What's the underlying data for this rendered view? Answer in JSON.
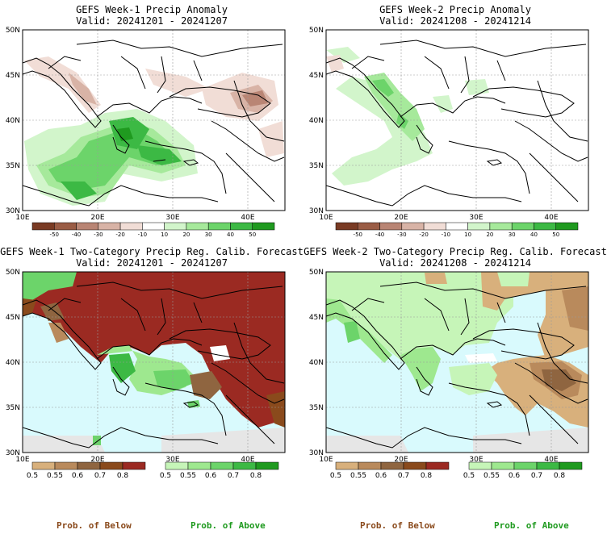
{
  "panels": [
    {
      "id": "w1-anom",
      "title": "GEFS Week-1 Precip Anomaly",
      "valid": "Valid: 20241201 - 20241207",
      "kind": "anomaly",
      "lat_labels": [
        "50N",
        "45N",
        "40N",
        "35N",
        "30N"
      ],
      "lon_labels": [
        "10E",
        "20E",
        "30E",
        "40E"
      ],
      "colorbar": {
        "labels": [
          "-50",
          "-40",
          "-30",
          "-20",
          "-10",
          "10",
          "20",
          "30",
          "40",
          "50"
        ],
        "colors": [
          "#7a3b24",
          "#9a5c45",
          "#b98574",
          "#d8b3a6",
          "#f1ddd6",
          "#ffffff",
          "#d2f5cb",
          "#a6e99b",
          "#6cd46a",
          "#3cb944",
          "#1f9a1f"
        ]
      }
    },
    {
      "id": "w2-anom",
      "title": "GEFS Week-2 Precip Anomaly",
      "valid": "Valid: 20241208 - 20241214",
      "kind": "anomaly",
      "lat_labels": [
        "50N",
        "45N",
        "40N",
        "35N",
        "30N"
      ],
      "lon_labels": [
        "10E",
        "20E",
        "30E",
        "40E"
      ],
      "colorbar": {
        "labels": [
          "-50",
          "-40",
          "-30",
          "-20",
          "-10",
          "10",
          "20",
          "30",
          "40",
          "50"
        ],
        "colors": [
          "#7a3b24",
          "#9a5c45",
          "#b98574",
          "#d8b3a6",
          "#f1ddd6",
          "#ffffff",
          "#d2f5cb",
          "#a6e99b",
          "#6cd46a",
          "#3cb944",
          "#1f9a1f"
        ]
      }
    },
    {
      "id": "w1-prob",
      "title": "GEFS Week-1 Two-Category Precip Reg. Calib. Forecast",
      "valid": "Valid: 20241201 - 20241207",
      "kind": "prob",
      "lat_labels": [
        "50N",
        "45N",
        "40N",
        "35N",
        "30N"
      ],
      "lon_labels": [
        "10E",
        "20E",
        "30E",
        "40E"
      ],
      "below_bar": {
        "labels": [
          "0.5",
          "0.55",
          "0.6",
          "0.7",
          "0.8"
        ],
        "colors": [
          "#d8b07c",
          "#b98a5c",
          "#8f6540",
          "#8a4a1c",
          "#9b2a22"
        ]
      },
      "above_bar": {
        "labels": [
          "0.5",
          "0.55",
          "0.6",
          "0.7",
          "0.8"
        ],
        "colors": [
          "#c6f5b8",
          "#9ee88f",
          "#6cd46a",
          "#3cb944",
          "#1f9a1f"
        ]
      }
    },
    {
      "id": "w2-prob",
      "title": "GEFS Week-2 Two-Category Precip Reg. Calib. Forecast",
      "valid": "Valid: 20241208 - 20241214",
      "kind": "prob",
      "lat_labels": [
        "50N",
        "45N",
        "40N",
        "35N",
        "30N"
      ],
      "lon_labels": [
        "10E",
        "20E",
        "30E",
        "40E"
      ],
      "below_bar": {
        "labels": [
          "0.5",
          "0.55",
          "0.6",
          "0.7",
          "0.8"
        ],
        "colors": [
          "#d8b07c",
          "#b98a5c",
          "#8f6540",
          "#8a4a1c",
          "#9b2a22"
        ]
      },
      "above_bar": {
        "labels": [
          "0.5",
          "0.55",
          "0.6",
          "0.7",
          "0.8"
        ],
        "colors": [
          "#c6f5b8",
          "#9ee88f",
          "#6cd46a",
          "#3cb944",
          "#1f9a1f"
        ]
      }
    }
  ],
  "footer": {
    "below_left": "Prob. of Below",
    "above_left": "Prob. of Above",
    "below_right": "Prob. of Below",
    "above_right": "Prob. of Above"
  },
  "colors": {
    "sea": "#d9fafd",
    "no_data": "#e6e6e6",
    "coast": "#000000",
    "grid": "#9a9a9a"
  }
}
